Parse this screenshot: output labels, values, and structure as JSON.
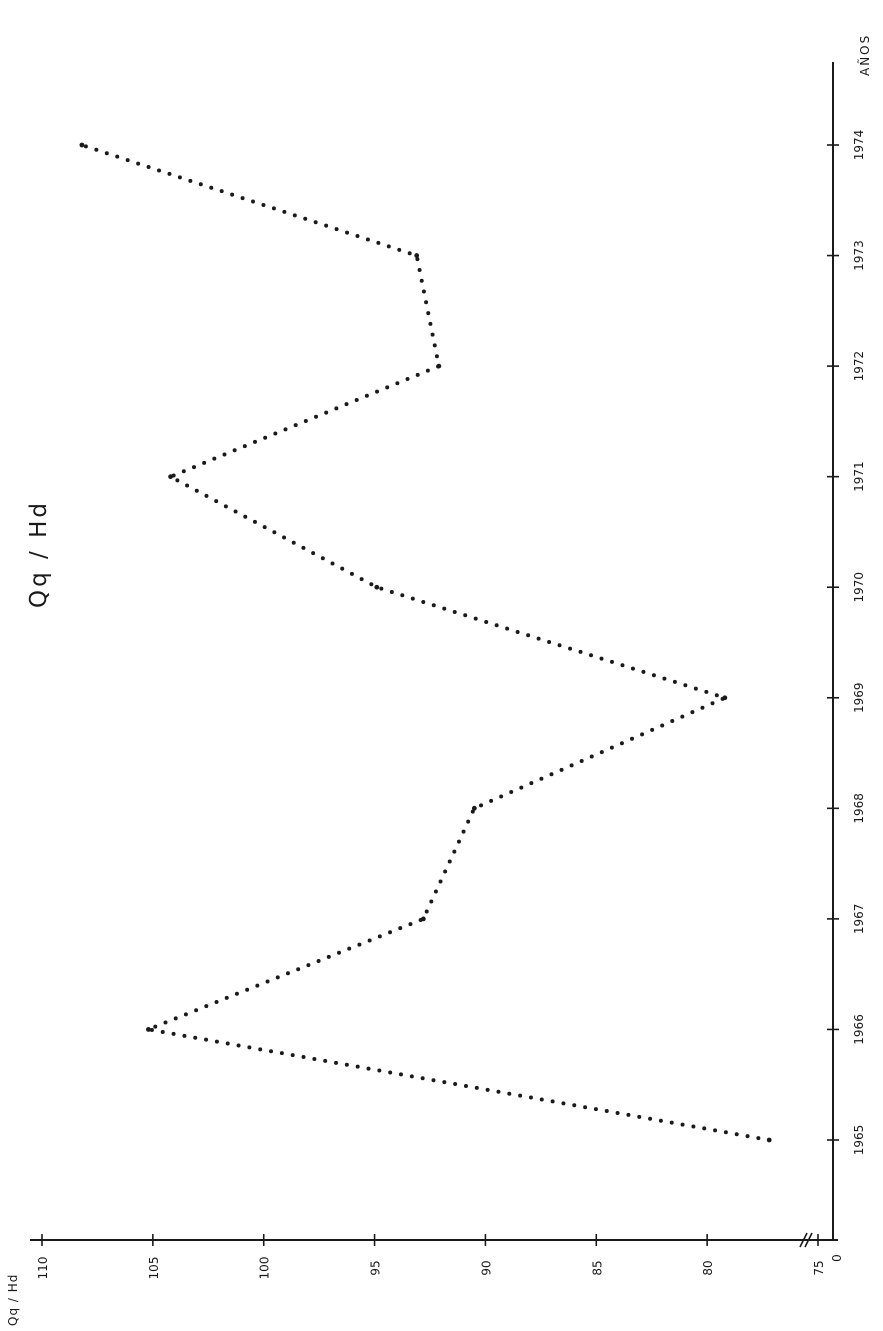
{
  "chart_data": {
    "type": "line",
    "title": "Qq / Hd",
    "ylabel": "Qq / Hd",
    "xlabel": "AÑOS",
    "x": [
      1965,
      1966,
      1967,
      1968,
      1969,
      1970,
      1971,
      1972,
      1973,
      1974
    ],
    "x_tick_labels": [
      "1965",
      "1966",
      "1967",
      "1968",
      "1969",
      "1970",
      "1971",
      "1972",
      "1973",
      "1974"
    ],
    "series": [
      {
        "values": [
          77.2,
          105.2,
          92.8,
          90.5,
          79.2,
          94.9,
          104.2,
          92.1,
          93.1,
          108.2
        ]
      }
    ],
    "y_ticks": [
      75,
      80,
      85,
      90,
      95,
      100,
      105,
      110
    ],
    "y_tick_labels": [
      "75",
      "80",
      "85",
      "90",
      "95",
      "100",
      "105",
      "110"
    ],
    "y_origin_label": "0",
    "ylim": [
      75,
      110
    ],
    "xlim": [
      1964.5,
      1974.5
    ],
    "axis_break": true,
    "grid": false,
    "line_style": "dotted",
    "orientation": "rotated-90"
  }
}
